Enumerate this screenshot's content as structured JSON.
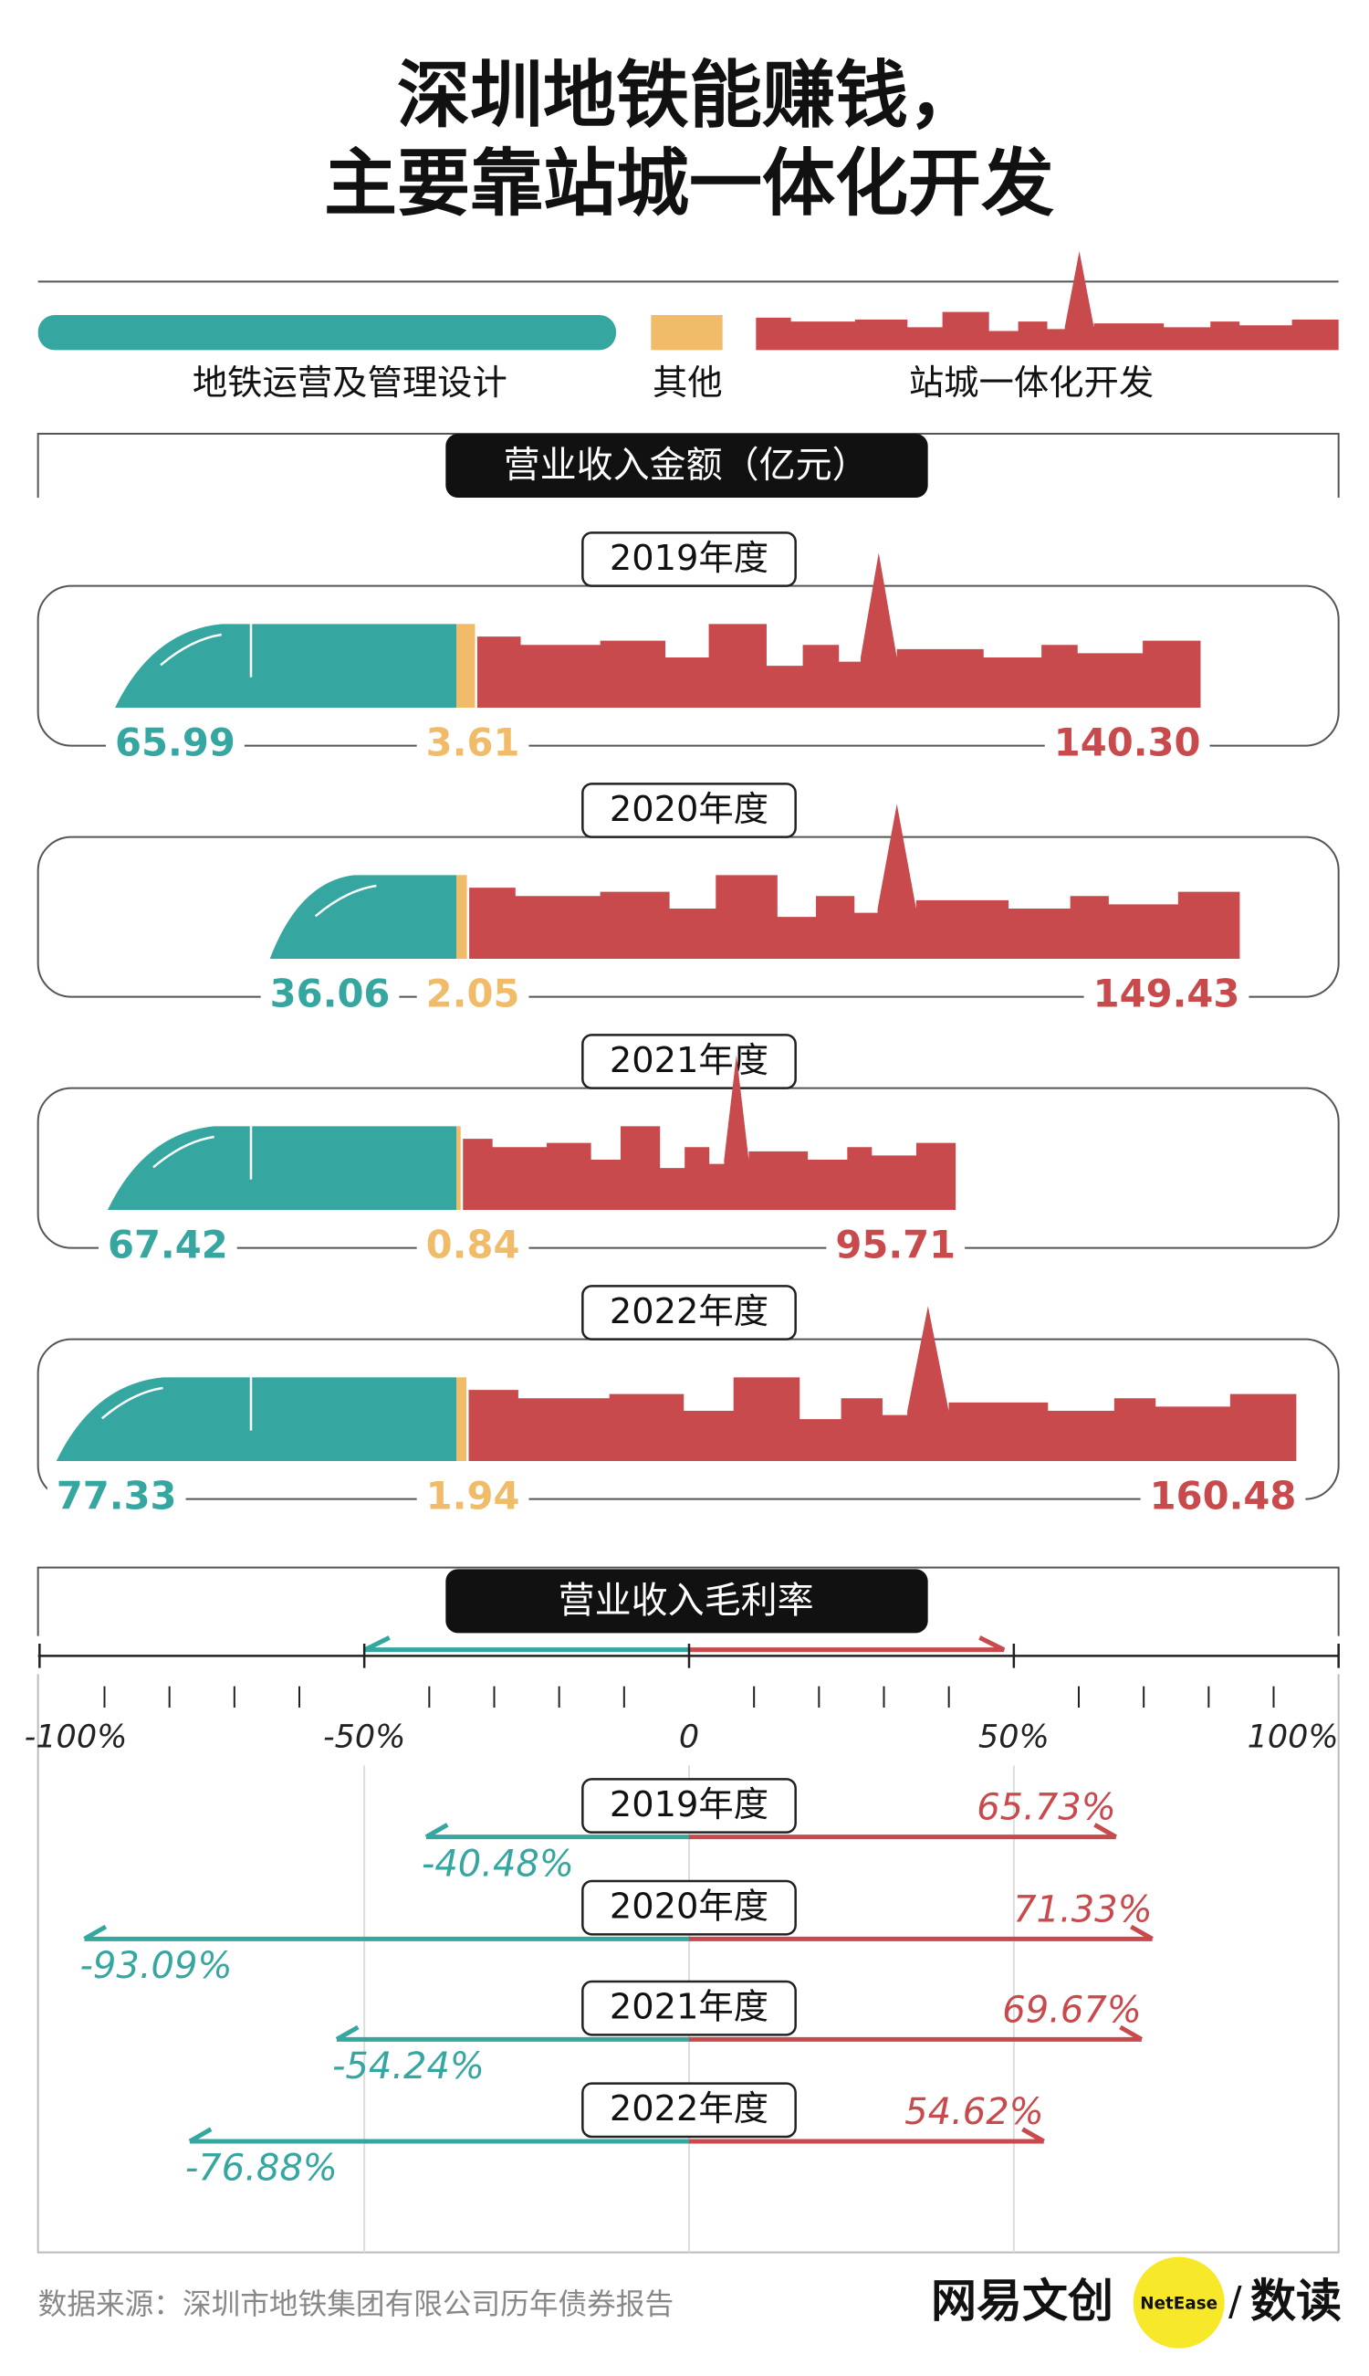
{
  "title": [
    "深圳地铁能赚钱，",
    "主要靠站城一体化开发"
  ],
  "chart_data": [
    {
      "type": "bar",
      "orientation": "horizontal",
      "stacked": true,
      "title": "营业收入金额（亿元）",
      "categories": [
        "2019年度",
        "2020年度",
        "2021年度",
        "2022年度"
      ],
      "series": [
        {
          "name": "地铁运营及管理设计",
          "color": "#36a6a0",
          "values": [
            65.99,
            36.06,
            67.42,
            77.33
          ],
          "value_labels": [
            "65.99",
            "36.06",
            "67.42",
            "77.33"
          ]
        },
        {
          "name": "其他",
          "color": "#f0bc6a",
          "values": [
            3.61,
            2.05,
            0.84,
            1.94
          ],
          "value_labels": [
            "3.61",
            "2.05",
            "0.84",
            "1.94"
          ]
        },
        {
          "name": "站城一体化开发",
          "color": "#c84a4c",
          "values": [
            140.3,
            149.43,
            95.71,
            160.48
          ],
          "value_labels": [
            "140.30",
            "149.43",
            "95.71",
            "160.48"
          ]
        }
      ]
    },
    {
      "type": "diverging",
      "title": "营业收入毛利率",
      "categories": [
        "2019年度",
        "2020年度",
        "2021年度",
        "2022年度"
      ],
      "xlim": [
        -100,
        100
      ],
      "xticks": [
        {
          "value": -100,
          "label": "-100%"
        },
        {
          "value": -50,
          "label": "-50%"
        },
        0,
        {
          "value": 50,
          "label": "50%"
        },
        {
          "value": 100,
          "label": "100%"
        }
      ],
      "xminorticks": [
        -90,
        -80,
        -70,
        -60,
        -40,
        -30,
        -20,
        -10,
        10,
        20,
        30,
        40,
        60,
        70,
        80,
        90
      ],
      "grid": true,
      "series": [
        {
          "color": "#36a6a0",
          "values": [
            -40.48,
            -93.09,
            -54.24,
            -76.88
          ],
          "value_labels": [
            "-40.48%",
            "-93.09%",
            "-54.24%",
            "-76.88%"
          ]
        },
        {
          "color": "#c84a4c",
          "values": [
            65.73,
            71.33,
            69.67,
            54.62
          ],
          "value_labels": [
            "65.73%",
            "71.33%",
            "69.67%",
            "54.62%"
          ]
        }
      ]
    }
  ],
  "source": "数据来源：深圳市地铁集团有限公司历年债券报告",
  "brand": {
    "name": "网易文创",
    "badge": "NetEase",
    "separator": "/",
    "product": "数读"
  }
}
